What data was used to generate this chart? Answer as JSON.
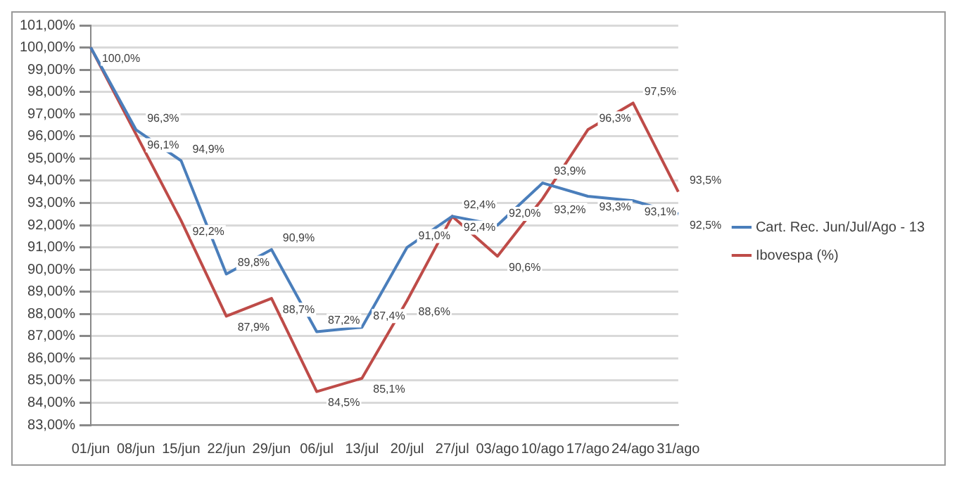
{
  "chart_data": {
    "type": "line",
    "categories": [
      "01/jun",
      "08/jun",
      "15/jun",
      "22/jun",
      "29/jun",
      "06/jul",
      "13/jul",
      "20/jul",
      "27/jul",
      "03/ago",
      "10/ago",
      "17/ago",
      "24/ago",
      "31/ago"
    ],
    "series": [
      {
        "name": "Cart. Rec. Jun/Jul/Ago - 13",
        "color": "#4a7ebb",
        "values": [
          100.0,
          96.3,
          94.9,
          89.8,
          90.9,
          87.2,
          87.4,
          91.0,
          92.4,
          92.0,
          93.9,
          93.3,
          93.1,
          92.5
        ],
        "value_labels": [
          null,
          "96,3%",
          "94,9%",
          "89,8%",
          "90,9%",
          "87,2%",
          "87,4%",
          "91,0%",
          "92,4%",
          "92,0%",
          "93,9%",
          "93,3%",
          "93,1%",
          "92,5%"
        ]
      },
      {
        "name": "Ibovespa (%)",
        "color": "#be4b48",
        "values": [
          100.0,
          96.1,
          92.2,
          87.9,
          88.7,
          84.5,
          85.1,
          88.6,
          92.4,
          90.6,
          93.2,
          96.3,
          97.5,
          93.5
        ],
        "value_labels": [
          "100,0%",
          "96,1%",
          "92,2%",
          "87,9%",
          "88,7%",
          "84,5%",
          "85,1%",
          "88,6%",
          "92,4%",
          "90,6%",
          "93,2%",
          "96,3%",
          "97,5%",
          "93,5%"
        ]
      }
    ],
    "ylim": [
      83,
      101
    ],
    "yticks": [
      {
        "value": 83,
        "label": "83,00%"
      },
      {
        "value": 84,
        "label": "84,00%"
      },
      {
        "value": 85,
        "label": "85,00%"
      },
      {
        "value": 86,
        "label": "86,00%"
      },
      {
        "value": 87,
        "label": "87,00%"
      },
      {
        "value": 88,
        "label": "88,00%"
      },
      {
        "value": 89,
        "label": "89,00%"
      },
      {
        "value": 90,
        "label": "90,00%"
      },
      {
        "value": 91,
        "label": "91,00%"
      },
      {
        "value": 92,
        "label": "92,00%"
      },
      {
        "value": 93,
        "label": "93,00%"
      },
      {
        "value": 94,
        "label": "94,00%"
      },
      {
        "value": 95,
        "label": "95,00%"
      },
      {
        "value": 96,
        "label": "96,00%"
      },
      {
        "value": 97,
        "label": "97,00%"
      },
      {
        "value": 98,
        "label": "98,00%"
      },
      {
        "value": 99,
        "label": "99,00%"
      },
      {
        "value": 100,
        "label": "100,00%"
      },
      {
        "value": 101,
        "label": "101,00%"
      }
    ],
    "grid": "y",
    "legend": "right",
    "marker": "none",
    "line_style": "solid"
  }
}
